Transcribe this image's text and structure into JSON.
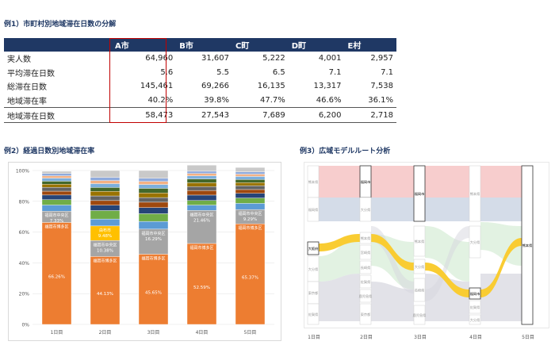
{
  "section1": {
    "title": "例1）市町村別地域滞在日数の分解"
  },
  "section2": {
    "title": "例2）経過日数別地域滞在率"
  },
  "section3": {
    "title": "例3）広域モデルルート分析"
  },
  "table": {
    "headers": [
      "",
      "A市",
      "B市",
      "C町",
      "D町",
      "E村"
    ],
    "rows": [
      {
        "label": "実人数",
        "values": [
          "64,960",
          "31,607",
          "5,222",
          "4,001",
          "2,957"
        ]
      },
      {
        "label": "平均滞在日数",
        "values": [
          "5.6",
          "5.5",
          "6.5",
          "7.1",
          "7.1"
        ]
      },
      {
        "label": "総滞在日数",
        "values": [
          "145,461",
          "69,266",
          "16,135",
          "13,317",
          "7,538"
        ]
      },
      {
        "label": "地域滞在率",
        "values": [
          "40.2%",
          "39.8%",
          "47.7%",
          "46.6%",
          "36.1%"
        ]
      },
      {
        "label": "地域滞在日数",
        "values": [
          "58,473",
          "27,543",
          "7,689",
          "6,200",
          "2,718"
        ]
      }
    ]
  },
  "chart_data": [
    {
      "type": "bar",
      "stacked": true,
      "categories": [
        "1日目",
        "2日目",
        "3日目",
        "4日目",
        "5日目"
      ],
      "ylim": [
        0,
        100
      ],
      "yticks": [
        "0%",
        "20%",
        "40%",
        "60%",
        "80%",
        "100%"
      ],
      "grid": true,
      "series": [
        {
          "name": "福岡市博多区",
          "color": "#ed7d31",
          "values": [
            66.26,
            44.13,
            45.65,
            52.59,
            65.37
          ],
          "labels": [
            "66.26%",
            "44.13%",
            "45.65%",
            "52.59%",
            "65.37%"
          ]
        },
        {
          "name": "福岡市中央区",
          "color": "#a5a5a5",
          "values": [
            7.33,
            10.38,
            16.29,
            21.46,
            9.29
          ],
          "labels": [
            "7.33%",
            "10.38%",
            "16.29%",
            "21.46%",
            "9.29%"
          ]
        },
        {
          "name": "由布市",
          "color": "#ffc000",
          "values": [
            0,
            9.48,
            0,
            0,
            0
          ],
          "labels": [
            "",
            "9.48%",
            "",
            "",
            ""
          ]
        },
        {
          "color": "#5b9bd5",
          "values": [
            4.0,
            4.5,
            5.0,
            3.5,
            4.0
          ]
        },
        {
          "color": "#70ad47",
          "values": [
            3.5,
            5.5,
            5.0,
            3.0,
            3.5
          ]
        },
        {
          "color": "#264478",
          "values": [
            3.0,
            3.5,
            4.0,
            3.5,
            3.0
          ]
        },
        {
          "color": "#9e480e",
          "values": [
            2.5,
            3.0,
            3.5,
            3.0,
            2.5
          ]
        },
        {
          "color": "#636363",
          "values": [
            2.5,
            3.0,
            3.0,
            2.5,
            2.5
          ]
        },
        {
          "color": "#997300",
          "values": [
            2.0,
            3.0,
            3.0,
            2.5,
            2.0
          ]
        },
        {
          "color": "#43682b",
          "values": [
            2.0,
            2.5,
            3.0,
            2.5,
            2.0
          ]
        },
        {
          "color": "#7cafdd",
          "values": [
            2.0,
            2.5,
            2.5,
            2.0,
            2.0
          ]
        },
        {
          "color": "#f4b183",
          "values": [
            1.5,
            2.0,
            2.0,
            1.5,
            1.5
          ]
        },
        {
          "color": "#8faadc",
          "values": [
            1.5,
            2.0,
            2.0,
            1.5,
            1.5
          ]
        },
        {
          "color": "#c9c9c9",
          "values": [
            1.41,
            4.51,
            5.06,
            3.96,
            2.84
          ]
        }
      ],
      "segment_labels": [
        [
          "福岡市博多区",
          "福岡市中央区",
          "",
          "",
          "",
          "",
          "",
          "",
          "",
          "",
          "",
          "",
          "",
          ""
        ],
        [
          "福岡市博多区",
          "福岡市中央区",
          "由布市",
          "",
          "",
          "",
          "",
          "",
          "",
          "",
          "",
          "",
          "",
          ""
        ],
        [
          "福岡市博多区",
          "福岡市中央区",
          "",
          "",
          "",
          "",
          "",
          "",
          "",
          "",
          "",
          "",
          "",
          ""
        ],
        [
          "福岡市博多区",
          "福岡市中央区",
          "",
          "",
          "",
          "",
          "",
          "",
          "",
          "",
          "",
          "",
          "",
          ""
        ],
        [
          "福岡市博多区",
          "福岡市中央区",
          "",
          "",
          "",
          "",
          "",
          "",
          "",
          "",
          "",
          "",
          "",
          ""
        ]
      ]
    }
  ],
  "sankey": {
    "day_labels": [
      "1日目",
      "2日目",
      "3日目",
      "4日目",
      "5日目"
    ],
    "col1_labels": [
      "熊本県",
      "福岡県",
      "大阪府",
      "大分県",
      "東京都",
      "佐賀県"
    ],
    "col2_labels": [
      "福岡市",
      "大分県",
      "熊本県",
      "宮崎県",
      "長崎県",
      "佐賀県",
      "鹿児島県",
      "東京都"
    ],
    "col3_labels": [
      "福岡市",
      "熊本県",
      "大分県",
      "長崎県",
      "鹿児島県"
    ],
    "col4_labels": [
      "熊本県",
      "大分県",
      "福岡市",
      "佐賀県",
      "大分県"
    ],
    "col5_labels": [
      "熊本県"
    ],
    "colors": {
      "pink": "#f6c8c8",
      "blue": "#cfd8e6",
      "yellow": "#f9cc32",
      "green": "#cfe9cf",
      "grey": "#d6d6de"
    }
  }
}
